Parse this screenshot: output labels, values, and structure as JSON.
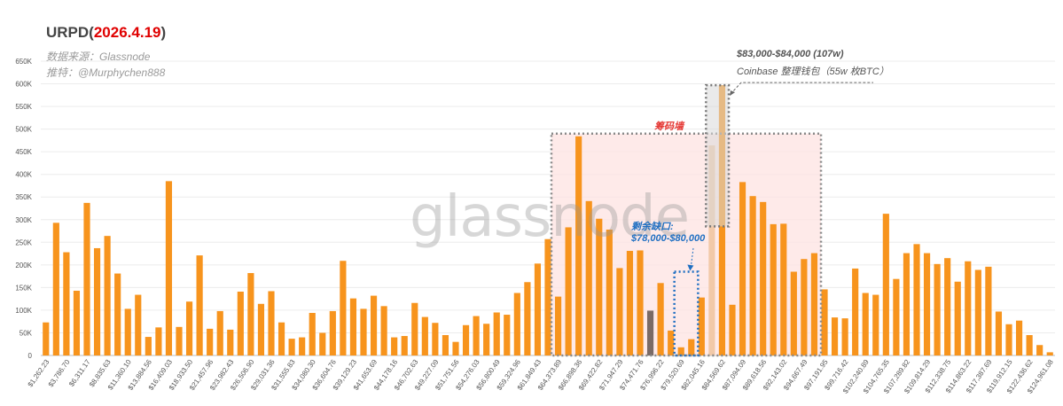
{
  "header": {
    "title_prefix": "URPD(",
    "title_date": "2026.4.19",
    "title_suffix": ")",
    "source_line": "数据来源：Glassnode",
    "twitter_line": "推特：@Murphychen888"
  },
  "watermark": "glassnode",
  "annotations": {
    "top_range": "$83,000-$84,000 (107w)",
    "top_note": "Coinbase 整理钱包（55w 枚BTC）",
    "wall_label": "筹码墙",
    "gap_title": "剩余缺口:",
    "gap_range": "$78,000-$80,000"
  },
  "colors": {
    "bar": "#f7941d",
    "bar_current": "#7a6a66",
    "bar_highlight": "#f2c9a8",
    "wall_fill": "#fde3e1",
    "wall_border": "#888888",
    "gap_border": "#1f6fc2",
    "title_date": "#e00000"
  },
  "chart_data": {
    "type": "bar",
    "title": "URPD(2026.4.19)",
    "xlabel": "",
    "ylabel": "",
    "ylim": [
      0,
      650000
    ],
    "yticks": [
      0,
      50000,
      100000,
      150000,
      200000,
      250000,
      300000,
      350000,
      400000,
      450000,
      500000,
      550000,
      600000,
      650000
    ],
    "ytick_labels": [
      "0",
      "50K",
      "100K",
      "150K",
      "200K",
      "250K",
      "300K",
      "350K",
      "400K",
      "450K",
      "500K",
      "550K",
      "600K",
      "650K"
    ],
    "grid": true,
    "x_tick_labels": [
      "$1,262.23",
      "$3,786.70",
      "$6,311.17",
      "$8,835.63",
      "$11,360.10",
      "$13,884.56",
      "$16,409.03",
      "$18,933.50",
      "$21,457.96",
      "$23,982.43",
      "$26,506.90",
      "$29,031.36",
      "$31,555.83",
      "$34,080.30",
      "$36,604.76",
      "$39,129.23",
      "$41,653.69",
      "$44,178.16",
      "$46,702.63",
      "$49,227.09",
      "$51,751.56",
      "$54,276.03",
      "$56,800.49",
      "$59,324.96",
      "$61,849.43",
      "$64,373.89",
      "$66,898.36",
      "$69,422.82",
      "$71,947.29",
      "$74,471.76",
      "$76,996.22",
      "$79,520.69",
      "$82,045.16",
      "$84,569.62",
      "$87,094.09",
      "$89,618.56",
      "$92,143.02",
      "$94,667.49",
      "$97,191.95",
      "$99,716.42",
      "$102,240.89",
      "$104,765.35",
      "$107,289.82",
      "$109,814.29",
      "$112,338.75",
      "$114,863.22",
      "$117,387.69",
      "$119,912.15",
      "$122,436.62",
      "$124,961.08"
    ],
    "values": [
      73000,
      293000,
      228000,
      143000,
      337000,
      237000,
      264000,
      181000,
      103000,
      134000,
      41000,
      62000,
      385000,
      63000,
      119000,
      221000,
      59000,
      98000,
      57000,
      141000,
      182000,
      114000,
      142000,
      73000,
      37000,
      40000,
      94000,
      50000,
      98000,
      209000,
      126000,
      103000,
      132000,
      109000,
      40000,
      43000,
      116000,
      85000,
      72000,
      45000,
      30000,
      67000,
      87000,
      70000,
      95000,
      90000,
      138000,
      162000,
      203000,
      257000,
      130000,
      283000,
      484000,
      341000,
      302000,
      278000,
      193000,
      231000,
      232000,
      99000,
      160000,
      55000,
      18000,
      36000,
      128000,
      464000,
      597000,
      112000,
      383000,
      352000,
      339000,
      290000,
      291000,
      185000,
      213000,
      226000,
      146000,
      84000,
      82000,
      192000,
      138000,
      134000,
      313000,
      169000,
      226000,
      246000,
      226000,
      202000,
      215000,
      163000,
      208000,
      189000,
      196000,
      97000,
      69000,
      77000,
      45000,
      23000,
      7000
    ],
    "current_price_bar_index": 59,
    "highlight_bar_index": 65,
    "regions": {
      "chip_wall": {
        "label": "筹码墙",
        "x_start": "$64,373.89",
        "x_end": "$94,667.49",
        "y_top": 490000
      },
      "coinbase_box": {
        "x": "$84,569.62",
        "y_bottom": 285000,
        "y_top": 597000
      },
      "remaining_gap": {
        "label": "$78,000-$80,000",
        "y_top": 185000
      }
    }
  }
}
